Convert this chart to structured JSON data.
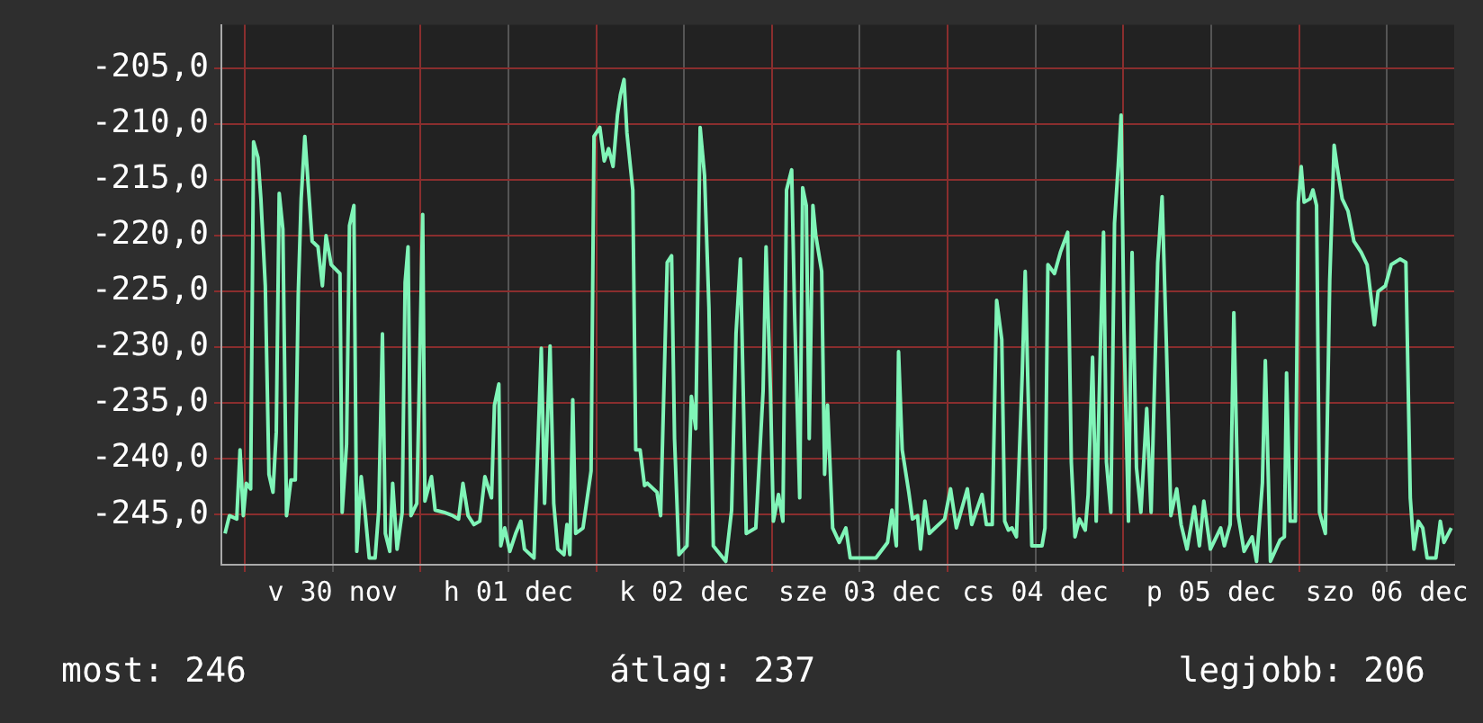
{
  "chart_data": {
    "type": "line",
    "color": "#80f5b8",
    "line_style": "solid",
    "marker": "none",
    "legend": false,
    "grid": true,
    "x": [
      "--11-29T21:18",
      "--11-29T21:54",
      "--11-29T22:54",
      "--11-29T23:21",
      "--11-29T23:48",
      "--11-30T00:12",
      "--11-30T00:48",
      "--11-30T01:12",
      "--11-30T01:48",
      "--11-30T02:12",
      "--11-30T02:48",
      "--11-30T03:18",
      "--11-30T03:51",
      "--11-30T04:18",
      "--11-30T04:42",
      "--11-30T05:12",
      "--11-30T05:42",
      "--11-30T06:18",
      "--11-30T06:54",
      "--11-30T07:18",
      "--11-30T07:42",
      "--11-30T08:12",
      "--11-30T08:48",
      "--11-30T09:12",
      "--11-30T10:00",
      "--11-30T10:36",
      "--11-30T11:06",
      "--11-30T11:48",
      "--11-30T13:00",
      "--11-30T13:18",
      "--11-30T13:54",
      "--11-30T14:18",
      "--11-30T14:54",
      "--11-30T15:18",
      "--11-30T15:54",
      "--11-30T16:24",
      "--11-30T17:00",
      "--11-30T17:48",
      "--11-30T18:18",
      "--11-30T18:48",
      "--11-30T19:12",
      "--11-30T19:48",
      "--11-30T20:12",
      "--11-30T20:48",
      "--11-30T21:30",
      "--11-30T21:54",
      "--11-30T22:18",
      "--11-30T22:42",
      "--11-30T23:30",
      "--12-01T00:18",
      "--12-01T00:36",
      "--12-01T01:30",
      "--12-01T02:00",
      "--12-01T03:12",
      "--12-01T04:24",
      "--12-01T05:12",
      "--12-01T05:48",
      "--12-01T06:30",
      "--12-01T07:18",
      "--12-01T08:06",
      "--12-01T08:48",
      "--12-01T09:42",
      "--12-01T10:06",
      "--12-01T10:42",
      "--12-01T10:58",
      "--12-01T11:30",
      "--12-01T12:12",
      "--12-01T13:00",
      "--12-01T13:42",
      "--12-01T14:12",
      "--12-01T15:30",
      "--12-01T16:30",
      "--12-01T16:57",
      "--12-01T17:42",
      "--12-01T18:12",
      "--12-01T18:45",
      "--12-01T19:36",
      "--12-01T20:00",
      "--12-01T20:24",
      "--12-01T20:48",
      "--12-01T21:12",
      "--12-01T22:12",
      "--12-01T23:18",
      "--12-01T23:42",
      "--12-02T00:30",
      "--12-02T01:06",
      "--12-02T01:42",
      "--12-02T02:18",
      "--12-02T02:54",
      "--12-02T03:18",
      "--12-02T03:48",
      "--12-02T04:12",
      "--12-02T05:00",
      "--12-02T05:24",
      "--12-02T06:00",
      "--12-02T06:36",
      "--12-02T07:00",
      "--12-02T08:18",
      "--12-02T08:48",
      "--12-02T09:42",
      "--12-02T10:18",
      "--12-02T10:42",
      "--12-02T11:18",
      "--12-02T12:24",
      "--12-02T13:00",
      "--12-02T13:36",
      "--12-02T14:12",
      "--12-02T14:48",
      "--12-02T15:24",
      "--12-02T16:00",
      "--12-02T17:42",
      "--12-02T18:30",
      "--12-02T19:06",
      "--12-02T19:42",
      "--12-02T20:30",
      "--12-02T21:48",
      "--12-02T22:48",
      "--12-02T23:12",
      "--12-02T23:48",
      "--12-03T00:12",
      "--12-03T00:54",
      "--12-03T01:30",
      "--12-03T02:00",
      "--12-03T02:42",
      "--12-03T03:06",
      "--12-03T03:48",
      "--12-03T04:12",
      "--12-03T04:42",
      "--12-03T05:06",
      "--12-03T05:36",
      "--12-03T06:00",
      "--12-03T06:48",
      "--12-03T07:12",
      "--12-03T07:36",
      "--12-03T08:18",
      "--12-03T09:12",
      "--12-03T10:06",
      "--12-03T10:42",
      "--12-03T12:30",
      "--12-03T14:12",
      "--12-03T15:48",
      "--12-03T16:24",
      "--12-03T17:00",
      "--12-03T17:18",
      "--12-03T17:48",
      "--12-03T18:42",
      "--12-03T19:12",
      "--12-03T19:54",
      "--12-03T20:18",
      "--12-03T20:54",
      "--12-03T21:30",
      "--12-03T22:18",
      "--12-03T23:36",
      "--12-04T00:24",
      "--12-04T01:12",
      "--12-04T02:42",
      "--12-04T03:18",
      "--12-04T04:42",
      "--12-04T05:18",
      "--12-04T06:06",
      "--12-04T06:42",
      "--12-04T07:24",
      "--12-04T07:48",
      "--12-04T08:18",
      "--12-04T08:48",
      "--12-04T09:24",
      "--12-04T10:12",
      "--12-04T10:36",
      "--12-04T11:30",
      "--12-04T12:54",
      "--12-04T13:18",
      "--12-04T13:42",
      "--12-04T14:36",
      "--12-04T15:24",
      "--12-04T16:24",
      "--12-04T16:54",
      "--12-04T17:24",
      "--12-04T18:00",
      "--12-04T18:48",
      "--12-04T19:12",
      "--12-04T19:48",
      "--12-04T20:18",
      "--12-04T20:54",
      "--12-04T21:18",
      "--12-04T21:42",
      "--12-04T22:18",
      "--12-04T22:48",
      "--12-04T23:18",
      "--12-04T23:42",
      "--12-05T00:06",
      "--12-05T00:42",
      "--12-05T01:12",
      "--12-05T01:48",
      "--12-05T02:24",
      "--12-05T03:12",
      "--12-05T03:48",
      "--12-05T04:42",
      "--12-05T05:18",
      "--12-05T05:54",
      "--12-05T06:30",
      "--12-05T07:18",
      "--12-05T07:54",
      "--12-05T08:42",
      "--12-05T09:42",
      "--12-05T10:24",
      "--12-05T11:00",
      "--12-05T11:54",
      "--12-05T13:18",
      "--12-05T13:48",
      "--12-05T14:36",
      "--12-05T15:06",
      "--12-05T15:42",
      "--12-05T16:30",
      "--12-05T17:36",
      "--12-05T18:12",
      "--12-05T19:00",
      "--12-05T19:24",
      "--12-05T20:06",
      "--12-05T21:24",
      "--12-05T22:00",
      "--12-05T22:18",
      "--12-05T22:48",
      "--12-05T23:30",
      "--12-05T23:54",
      "--12-06T00:18",
      "--12-06T00:42",
      "--12-06T01:30",
      "--12-06T01:54",
      "--12-06T02:24",
      "--12-06T02:48",
      "--12-06T03:36",
      "--12-06T04:12",
      "--12-06T04:48",
      "--12-06T05:12",
      "--12-06T05:54",
      "--12-06T06:42",
      "--12-06T07:30",
      "--12-06T08:30",
      "--12-06T09:18",
      "--12-06T10:18",
      "--12-06T10:48",
      "--12-06T11:48",
      "--12-06T12:36",
      "--12-06T13:48",
      "--12-06T14:36",
      "--12-06T15:12",
      "--12-06T15:42",
      "--12-06T16:18",
      "--12-06T16:54",
      "--12-06T17:30",
      "--12-06T18:42",
      "--12-06T19:18",
      "--12-06T19:48",
      "--12-06T20:48"
    ],
    "values": [
      -246.7,
      -245.1,
      -245.4,
      -239.2,
      -245.1,
      -242.2,
      -242.7,
      -211.6,
      -213.0,
      -216.7,
      -224.5,
      -241.4,
      -243.0,
      -237.6,
      -216.2,
      -219.4,
      -245.1,
      -241.9,
      -241.9,
      -225.3,
      -216.7,
      -211.1,
      -216.7,
      -220.5,
      -221.0,
      -224.5,
      -220.0,
      -222.6,
      -223.4,
      -244.8,
      -238.7,
      -219.1,
      -217.3,
      -248.3,
      -241.6,
      -244.6,
      -248.9,
      -248.9,
      -244.6,
      -228.8,
      -246.7,
      -248.3,
      -242.2,
      -248.1,
      -244.8,
      -224.2,
      -221.0,
      -245.1,
      -244.0,
      -218.1,
      -243.8,
      -241.6,
      -244.6,
      -244.8,
      -245.1,
      -245.4,
      -242.2,
      -245.1,
      -245.9,
      -245.6,
      -241.6,
      -243.5,
      -235.2,
      -233.3,
      -247.8,
      -246.2,
      -248.3,
      -246.7,
      -245.6,
      -248.1,
      -248.9,
      -230.1,
      -244.0,
      -229.9,
      -244.0,
      -248.1,
      -248.6,
      -245.9,
      -248.6,
      -234.7,
      -246.7,
      -246.2,
      -241.1,
      -211.1,
      -210.3,
      -213.3,
      -212.2,
      -213.8,
      -209.2,
      -207.4,
      -206.0,
      -210.8,
      -215.9,
      -239.2,
      -239.2,
      -242.4,
      -242.2,
      -243.0,
      -245.1,
      -222.4,
      -221.8,
      -238.2,
      -248.6,
      -247.8,
      -234.4,
      -237.3,
      -210.3,
      -214.6,
      -226.4,
      -247.8,
      -249.2,
      -244.6,
      -228.8,
      -222.1,
      -246.7,
      -246.2,
      -233.9,
      -221.0,
      -233.9,
      -245.6,
      -243.2,
      -245.6,
      -215.9,
      -214.1,
      -226.9,
      -243.5,
      -215.7,
      -217.3,
      -238.2,
      -217.3,
      -220.0,
      -223.2,
      -241.4,
      -235.2,
      -246.2,
      -247.5,
      -246.2,
      -248.9,
      -248.9,
      -248.9,
      -247.5,
      -244.6,
      -247.8,
      -230.4,
      -239.2,
      -243.0,
      -245.4,
      -245.1,
      -248.1,
      -243.8,
      -246.7,
      -246.2,
      -245.4,
      -242.7,
      -246.2,
      -242.7,
      -245.9,
      -243.2,
      -245.9,
      -245.9,
      -225.8,
      -229.3,
      -245.6,
      -246.4,
      -246.2,
      -247.0,
      -232.3,
      -223.2,
      -247.8,
      -247.8,
      -246.2,
      -222.6,
      -223.4,
      -221.5,
      -219.7,
      -240.3,
      -247.0,
      -245.4,
      -246.4,
      -243.2,
      -230.9,
      -245.6,
      -229.3,
      -219.7,
      -240.3,
      -244.8,
      -218.9,
      -213.8,
      -209.2,
      -228.5,
      -245.6,
      -221.5,
      -240.8,
      -244.8,
      -235.5,
      -244.8,
      -222.4,
      -216.5,
      -230.1,
      -245.1,
      -242.7,
      -245.9,
      -248.1,
      -244.3,
      -247.8,
      -243.8,
      -248.1,
      -246.2,
      -247.8,
      -245.9,
      -226.9,
      -245.1,
      -248.3,
      -247.0,
      -249.2,
      -242.2,
      -231.2,
      -249.2,
      -247.3,
      -247.0,
      -232.3,
      -245.6,
      -245.6,
      -217.0,
      -213.8,
      -217.0,
      -216.7,
      -215.9,
      -217.3,
      -244.8,
      -246.7,
      -224.0,
      -211.9,
      -213.8,
      -216.7,
      -217.8,
      -220.5,
      -221.5,
      -222.6,
      -228.0,
      -225.0,
      -224.5,
      -222.6,
      -222.1,
      -222.4,
      -243.5,
      -248.1,
      -245.6,
      -246.2,
      -248.9,
      -248.9,
      -245.6,
      -247.5,
      -246.2
    ],
    "xlim": [
      "--11-29T20:48",
      "--12-06T21:12"
    ],
    "xticks": [
      {
        "value": "--11-30T00:00",
        "label": null
      },
      {
        "value": "--11-30T12:00",
        "label": "v 30 nov"
      },
      {
        "value": "--12-01T00:00",
        "label": null
      },
      {
        "value": "--12-01T12:00",
        "label": "h 01 dec"
      },
      {
        "value": "--12-02T00:00",
        "label": null
      },
      {
        "value": "--12-02T12:00",
        "label": "k 02 dec"
      },
      {
        "value": "--12-03T00:00",
        "label": null
      },
      {
        "value": "--12-03T12:00",
        "label": "sze 03 dec"
      },
      {
        "value": "--12-04T00:00",
        "label": null
      },
      {
        "value": "--12-04T12:00",
        "label": "cs 04 dec"
      },
      {
        "value": "--12-05T00:00",
        "label": null
      },
      {
        "value": "--12-05T12:00",
        "label": "p 05 dec"
      },
      {
        "value": "--12-06T00:00",
        "label": null
      },
      {
        "value": "--12-06T12:00",
        "label": "szo 06 dec"
      }
    ],
    "ylim": [
      -249.5,
      -201.1
    ],
    "yticks": [
      {
        "value": -245,
        "label": "-245,0"
      },
      {
        "value": -240,
        "label": "-240,0"
      },
      {
        "value": -235,
        "label": "-235,0"
      },
      {
        "value": -230,
        "label": "-230,0"
      },
      {
        "value": -225,
        "label": "-225,0"
      },
      {
        "value": -220,
        "label": "-220,0"
      },
      {
        "value": -215,
        "label": "-215,0"
      },
      {
        "value": -210,
        "label": "-210,0"
      },
      {
        "value": -205,
        "label": "-205,0"
      }
    ],
    "annotations": [
      "most: 246",
      "átlag: 237",
      "legjobb: 206"
    ]
  }
}
